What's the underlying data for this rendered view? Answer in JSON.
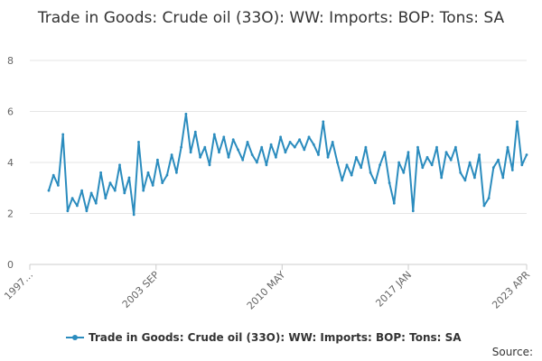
{
  "chart_data": {
    "type": "line",
    "title": "Trade in Goods: Crude oil (33O): WW: Imports: BOP: Tons: SA",
    "xlabel": "",
    "ylabel": "",
    "ylim": [
      0,
      8
    ],
    "yticks": [
      "0",
      "2",
      "4",
      "6",
      "8"
    ],
    "xlim": [
      1997.0,
      2023.25
    ],
    "xtick_labels": [
      "1997…",
      "2003 SEP",
      "2010 MAY",
      "2017 JAN",
      "2023 APR"
    ],
    "xtick_positions": [
      1997.0,
      2003.67,
      2010.33,
      2017.0,
      2023.25
    ],
    "grid": "horizontal",
    "legend_position": "bottom",
    "color": "#2b8cbe",
    "series": [
      {
        "name": "Trade in Goods: Crude oil (33O): WW: Imports: BOP: Tons: SA",
        "x": [
          1998.0,
          1998.25,
          1998.5,
          1998.75,
          1999.0,
          1999.25,
          1999.5,
          1999.75,
          2000.0,
          2000.25,
          2000.5,
          2000.75,
          2001.0,
          2001.25,
          2001.5,
          2001.75,
          2002.0,
          2002.25,
          2002.5,
          2002.75,
          2003.0,
          2003.25,
          2003.5,
          2003.75,
          2004.0,
          2004.25,
          2004.5,
          2004.75,
          2005.0,
          2005.25,
          2005.5,
          2005.75,
          2006.0,
          2006.25,
          2006.5,
          2006.75,
          2007.0,
          2007.25,
          2007.5,
          2007.75,
          2008.0,
          2008.25,
          2008.5,
          2008.75,
          2009.0,
          2009.25,
          2009.5,
          2009.75,
          2010.0,
          2010.25,
          2010.5,
          2010.75,
          2011.0,
          2011.25,
          2011.5,
          2011.75,
          2012.0,
          2012.25,
          2012.5,
          2012.75,
          2013.0,
          2013.25,
          2013.5,
          2013.75,
          2014.0,
          2014.25,
          2014.5,
          2014.75,
          2015.0,
          2015.25,
          2015.5,
          2015.75,
          2016.0,
          2016.25,
          2016.5,
          2016.75,
          2017.0,
          2017.25,
          2017.5,
          2017.75,
          2018.0,
          2018.25,
          2018.5,
          2018.75,
          2019.0,
          2019.25,
          2019.5,
          2019.75,
          2020.0,
          2020.25,
          2020.5,
          2020.75,
          2021.0,
          2021.25,
          2021.5,
          2021.75,
          2022.0,
          2022.25,
          2022.5,
          2022.75,
          2023.0,
          2023.25
        ],
        "values": [
          2.9,
          3.5,
          3.1,
          5.1,
          2.1,
          2.6,
          2.3,
          2.9,
          2.1,
          2.8,
          2.4,
          3.6,
          2.6,
          3.2,
          2.9,
          3.9,
          2.8,
          3.4,
          1.95,
          4.8,
          2.9,
          3.6,
          3.1,
          4.1,
          3.2,
          3.5,
          4.3,
          3.6,
          4.6,
          5.9,
          4.4,
          5.2,
          4.2,
          4.6,
          3.9,
          5.1,
          4.4,
          5.0,
          4.2,
          4.9,
          4.5,
          4.1,
          4.8,
          4.3,
          4.0,
          4.6,
          3.9,
          4.7,
          4.2,
          5.0,
          4.4,
          4.8,
          4.6,
          4.9,
          4.5,
          5.0,
          4.7,
          4.3,
          5.6,
          4.2,
          4.8,
          4.0,
          3.3,
          3.9,
          3.5,
          4.2,
          3.8,
          4.6,
          3.6,
          3.2,
          3.9,
          4.4,
          3.2,
          2.4,
          4.0,
          3.6,
          4.4,
          2.1,
          4.6,
          3.8,
          4.2,
          3.9,
          4.6,
          3.4,
          4.4,
          4.1,
          4.6,
          3.6,
          3.3,
          4.0,
          3.4,
          4.3,
          2.3,
          2.6,
          3.8,
          4.1,
          3.4,
          4.6,
          3.7,
          5.6,
          3.9,
          4.3
        ]
      }
    ],
    "source_label": "Source:"
  }
}
